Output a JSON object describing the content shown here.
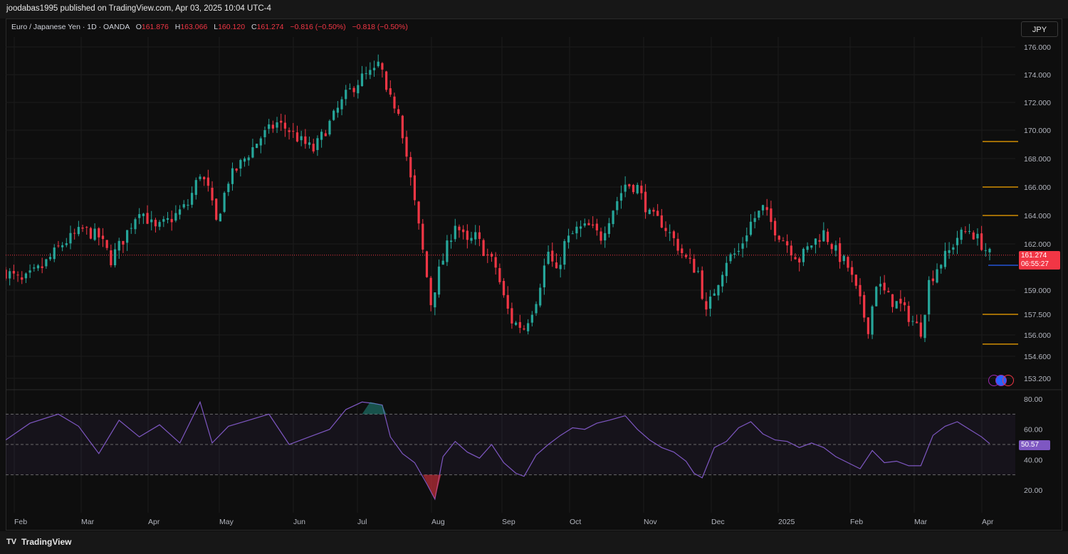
{
  "header": {
    "publisher_line": "joodabas1995 published on TradingView.com, Apr 03, 2025 10:04 UTC-4"
  },
  "legend": {
    "symbol": "Euro / Japanese Yen · 1D · OANDA",
    "open_label": "O",
    "open": "161.876",
    "high_label": "H",
    "high": "163.066",
    "low_label": "L",
    "low": "160.120",
    "close_label": "C",
    "close": "161.274",
    "change": "−0.816 (−0.50%)",
    "change2": "−0.818 (−0.50%)"
  },
  "currency_button": "JPY",
  "last_price": {
    "value": "161.274",
    "countdown": "06:55:27"
  },
  "rsi_value": "50.57",
  "footer": {
    "brand": "TradingView"
  },
  "colors": {
    "up": "#26a69a",
    "down": "#f23645",
    "rsi": "#7e57c2",
    "level": "#f7a600",
    "blue": "#2962ff"
  },
  "chart_data": [
    {
      "type": "candlestick",
      "symbol": "EURJPY",
      "timeframe": "1D",
      "price_axis_ticks": [
        "176.000",
        "174.000",
        "172.000",
        "170.000",
        "168.000",
        "166.000",
        "164.000",
        "162.000",
        "159.000",
        "157.500",
        "156.000",
        "154.600",
        "153.200"
      ],
      "time_axis_labels": [
        "Feb",
        "Mar",
        "Apr",
        "May",
        "Jun",
        "Jul",
        "Aug",
        "Sep",
        "Oct",
        "Nov",
        "Dec",
        "2025",
        "Feb",
        "Mar",
        "Apr"
      ],
      "close_path": [
        [
          0,
          160.2
        ],
        [
          8,
          159.5
        ],
        [
          18,
          160.5
        ],
        [
          28,
          162.0
        ],
        [
          38,
          163.0
        ],
        [
          46,
          162.5
        ],
        [
          52,
          161.0
        ],
        [
          58,
          162.3
        ],
        [
          66,
          164.5
        ],
        [
          74,
          163.0
        ],
        [
          82,
          163.8
        ],
        [
          90,
          164.8
        ],
        [
          96,
          167.0
        ],
        [
          100,
          165.8
        ],
        [
          104,
          163.5
        ],
        [
          110,
          166.5
        ],
        [
          118,
          168.0
        ],
        [
          126,
          169.5
        ],
        [
          134,
          170.5
        ],
        [
          140,
          170.0
        ],
        [
          146,
          169.2
        ],
        [
          152,
          168.6
        ],
        [
          160,
          170.5
        ],
        [
          168,
          172.5
        ],
        [
          176,
          173.8
        ],
        [
          182,
          174.2
        ],
        [
          185,
          175.0
        ],
        [
          188,
          172.5
        ],
        [
          194,
          171.5
        ],
        [
          200,
          166.5
        ],
        [
          206,
          161.5
        ],
        [
          210,
          158.2
        ],
        [
          214,
          160.2
        ],
        [
          218,
          161.8
        ],
        [
          222,
          163.5
        ],
        [
          228,
          162.0
        ],
        [
          232,
          162.5
        ],
        [
          238,
          161.2
        ],
        [
          242,
          160.5
        ],
        [
          246,
          158.5
        ],
        [
          250,
          157.0
        ],
        [
          256,
          156.5
        ],
        [
          262,
          158.5
        ],
        [
          268,
          161.5
        ],
        [
          272,
          160.0
        ],
        [
          276,
          162.0
        ],
        [
          282,
          163.0
        ],
        [
          288,
          163.2
        ],
        [
          294,
          162.5
        ],
        [
          300,
          164.5
        ],
        [
          306,
          166.2
        ],
        [
          312,
          166.0
        ],
        [
          318,
          164.0
        ],
        [
          324,
          163.5
        ],
        [
          330,
          162.3
        ],
        [
          336,
          161.0
        ],
        [
          342,
          160.2
        ],
        [
          346,
          157.5
        ],
        [
          350,
          159.0
        ],
        [
          356,
          161.0
        ],
        [
          362,
          161.5
        ],
        [
          368,
          163.5
        ],
        [
          374,
          164.5
        ],
        [
          380,
          163.0
        ],
        [
          386,
          162.0
        ],
        [
          392,
          161.0
        ],
        [
          398,
          162.0
        ],
        [
          404,
          162.8
        ],
        [
          410,
          161.5
        ],
        [
          416,
          160.5
        ],
        [
          422,
          158.2
        ],
        [
          426,
          156.5
        ],
        [
          430,
          159.5
        ],
        [
          436,
          158.5
        ],
        [
          442,
          158.0
        ],
        [
          448,
          157.0
        ],
        [
          452,
          156.3
        ],
        [
          456,
          159.5
        ],
        [
          460,
          160.5
        ],
        [
          466,
          161.5
        ],
        [
          470,
          162.5
        ],
        [
          476,
          163.0
        ],
        [
          482,
          162.0
        ],
        [
          486,
          161.274
        ]
      ],
      "last_price": 161.274,
      "level_lines": [
        169.2,
        166.0,
        164.0,
        157.5,
        155.4
      ]
    },
    {
      "type": "line",
      "name": "RSI",
      "y_axis_ticks": [
        "80.00",
        "60.00",
        "40.00",
        "20.00"
      ],
      "bands": [
        70,
        50,
        30
      ],
      "last_value": 50.57,
      "values": [
        [
          0,
          53
        ],
        [
          12,
          64
        ],
        [
          26,
          70
        ],
        [
          36,
          62
        ],
        [
          46,
          44
        ],
        [
          56,
          66
        ],
        [
          66,
          55
        ],
        [
          76,
          63
        ],
        [
          86,
          51
        ],
        [
          96,
          78
        ],
        [
          102,
          51
        ],
        [
          110,
          62
        ],
        [
          120,
          66
        ],
        [
          130,
          70
        ],
        [
          140,
          50
        ],
        [
          150,
          55
        ],
        [
          160,
          60
        ],
        [
          168,
          73
        ],
        [
          176,
          78
        ],
        [
          182,
          77
        ],
        [
          186,
          76
        ],
        [
          190,
          55
        ],
        [
          196,
          44
        ],
        [
          202,
          38
        ],
        [
          208,
          24
        ],
        [
          212,
          14
        ],
        [
          216,
          42
        ],
        [
          222,
          52
        ],
        [
          228,
          45
        ],
        [
          234,
          41
        ],
        [
          240,
          50
        ],
        [
          246,
          38
        ],
        [
          252,
          31
        ],
        [
          256,
          29
        ],
        [
          262,
          43
        ],
        [
          268,
          50
        ],
        [
          274,
          56
        ],
        [
          280,
          61
        ],
        [
          286,
          60
        ],
        [
          292,
          64
        ],
        [
          298,
          66
        ],
        [
          306,
          69
        ],
        [
          312,
          60
        ],
        [
          318,
          53
        ],
        [
          324,
          48
        ],
        [
          330,
          45
        ],
        [
          336,
          39
        ],
        [
          340,
          31
        ],
        [
          344,
          28
        ],
        [
          350,
          48
        ],
        [
          356,
          52
        ],
        [
          362,
          61
        ],
        [
          368,
          65
        ],
        [
          374,
          57
        ],
        [
          380,
          53
        ],
        [
          386,
          52
        ],
        [
          392,
          48
        ],
        [
          398,
          51
        ],
        [
          404,
          48
        ],
        [
          410,
          42
        ],
        [
          416,
          38
        ],
        [
          422,
          34
        ],
        [
          428,
          46
        ],
        [
          434,
          38
        ],
        [
          440,
          39
        ],
        [
          446,
          36
        ],
        [
          452,
          36
        ],
        [
          458,
          56
        ],
        [
          464,
          62
        ],
        [
          470,
          65
        ],
        [
          476,
          60
        ],
        [
          482,
          55
        ],
        [
          486,
          50.57
        ]
      ]
    }
  ]
}
